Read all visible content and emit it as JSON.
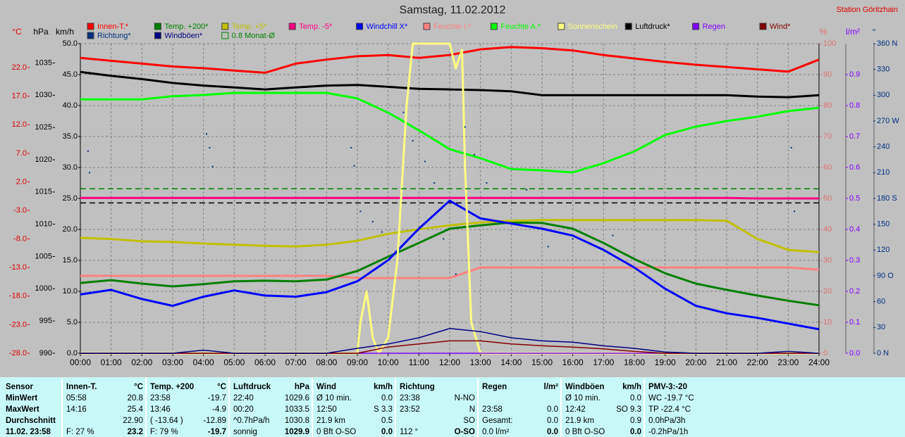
{
  "chart_data": {
    "type": "line",
    "title": "Samstag, 11.02.2012",
    "station": "Station Göritzhain",
    "xlim": [
      0,
      24
    ],
    "xticks": [
      {
        "value": 0,
        "label": "00:00"
      },
      {
        "value": 1,
        "label": "01:00"
      },
      {
        "value": 2,
        "label": "02:00"
      },
      {
        "value": 3,
        "label": "03:00"
      },
      {
        "value": 4,
        "label": "04:00"
      },
      {
        "value": 5,
        "label": "05:00"
      },
      {
        "value": 6,
        "label": "06:00"
      },
      {
        "value": 7,
        "label": "07:00"
      },
      {
        "value": 8,
        "label": "08:00"
      },
      {
        "value": 9,
        "label": "09:00"
      },
      {
        "value": 10,
        "label": "10:00"
      },
      {
        "value": 11,
        "label": "11:00"
      },
      {
        "value": 12,
        "label": "12:00"
      },
      {
        "value": 13,
        "label": "13:00"
      },
      {
        "value": 14,
        "label": "14:00"
      },
      {
        "value": 15,
        "label": "15:00"
      },
      {
        "value": 16,
        "label": "16:00"
      },
      {
        "value": 17,
        "label": "17:00"
      },
      {
        "value": 18,
        "label": "18:00"
      },
      {
        "value": 19,
        "label": "19:00"
      },
      {
        "value": 20,
        "label": "20:00"
      },
      {
        "value": 21,
        "label": "21:00"
      },
      {
        "value": 22,
        "label": "22:00"
      },
      {
        "value": 23,
        "label": "23:00"
      },
      {
        "value": 24,
        "label": "24:00"
      }
    ],
    "x": [
      0,
      1,
      2,
      3,
      4,
      5,
      6,
      7,
      8,
      9,
      10,
      11,
      12,
      13,
      14,
      15,
      16,
      17,
      18,
      19,
      20,
      21,
      22,
      23,
      24
    ],
    "grid": true,
    "grid_axis": "kmh",
    "yaxes": [
      {
        "id": "temp",
        "label": "°C",
        "color": "#e00000",
        "lim": [
          -28,
          26.2
        ],
        "ticks": [
          {
            "value": -28,
            "label": "-28.0"
          },
          {
            "value": -23,
            "label": "-23.0"
          },
          {
            "value": -18,
            "label": "-18.0"
          },
          {
            "value": -13,
            "label": "-13.0"
          },
          {
            "value": -8,
            "label": "-8.0"
          },
          {
            "value": -3,
            "label": "-3.0"
          },
          {
            "value": 2,
            "label": "2.0"
          },
          {
            "value": 7,
            "label": "7.0"
          },
          {
            "value": 12,
            "label": "12.0"
          },
          {
            "value": 17,
            "label": "17.0"
          },
          {
            "value": 22,
            "label": "22.0"
          }
        ]
      },
      {
        "id": "hpa",
        "label": "hPa",
        "color": "#000000",
        "lim": [
          990,
          1038
        ],
        "ticks": [
          990,
          995,
          1000,
          1005,
          1010,
          1015,
          1020,
          1025,
          1030,
          1035
        ]
      },
      {
        "id": "kmh",
        "label": "km/h",
        "color": "#000000",
        "lim": [
          0,
          50
        ],
        "ticks": [
          {
            "value": 0,
            "label": "0.0"
          },
          {
            "value": 5,
            "label": "5.0"
          },
          {
            "value": 10,
            "label": "10.0"
          },
          {
            "value": 15,
            "label": "15.0"
          },
          {
            "value": 20,
            "label": "20.0"
          },
          {
            "value": 25,
            "label": "25.0"
          },
          {
            "value": 30,
            "label": "30.0"
          },
          {
            "value": 35,
            "label": "35.0"
          },
          {
            "value": 40,
            "label": "40.0"
          },
          {
            "value": 45,
            "label": "45.0"
          },
          {
            "value": 50,
            "label": "50.0"
          }
        ]
      },
      {
        "id": "pct",
        "label": "%",
        "color": "#e07070",
        "lim": [
          0,
          100
        ],
        "ticks": [
          0,
          10,
          20,
          30,
          40,
          50,
          60,
          70,
          80,
          90,
          100
        ]
      },
      {
        "id": "rain",
        "label": "l/m²",
        "color": "#8000ff",
        "lim": [
          0,
          1
        ],
        "ticks": [
          {
            "value": 0,
            "label": "0.0"
          },
          0.1,
          0.2,
          0.3,
          0.4,
          0.5,
          0.6,
          0.7,
          0.8,
          0.9
        ]
      },
      {
        "id": "dir",
        "label": "°",
        "color": "#003080",
        "lim": [
          0,
          360
        ],
        "ticks": [
          {
            "value": 0,
            "label": "0 N"
          },
          30,
          60,
          {
            "value": 90,
            "label": "90 O"
          },
          120,
          150,
          {
            "value": 180,
            "label": "180 S"
          },
          210,
          240,
          {
            "value": 270,
            "label": "270 W"
          },
          300,
          330,
          {
            "value": 360,
            "label": "360 N"
          }
        ]
      }
    ],
    "series": [
      {
        "name": "Innen-T.*",
        "color": "#ff0000",
        "axis": "temp",
        "style": "line",
        "values": [
          23.7,
          23.2,
          22.7,
          22.2,
          21.9,
          21.5,
          21.1,
          22.7,
          23.4,
          24.0,
          24.2,
          23.7,
          24.2,
          25.2,
          25.6,
          25.4,
          25.0,
          24.2,
          23.6,
          23.0,
          22.5,
          22.1,
          21.7,
          21.3,
          23.4
        ]
      },
      {
        "name": "Temp. +200*",
        "color": "#008000",
        "axis": "temp",
        "style": "line",
        "values": [
          -15.7,
          -15.2,
          -15.8,
          -16.3,
          -15.9,
          -15.4,
          -15.3,
          -15.4,
          -15.1,
          -13.6,
          -11.1,
          -8.7,
          -6.2,
          -5.6,
          -5.1,
          -5.2,
          -6.2,
          -8.7,
          -11.5,
          -14.0,
          -15.8,
          -16.9,
          -17.9,
          -18.8,
          -19.6
        ]
      },
      {
        "name": "Temp. +5*",
        "color": "#c0c000",
        "axis": "temp",
        "style": "line",
        "values": [
          -7.8,
          -8.0,
          -8.4,
          -8.5,
          -8.8,
          -9.0,
          -9.2,
          -9.3,
          -9.0,
          -8.3,
          -7.1,
          -6.3,
          -5.6,
          -5.1,
          -4.8,
          -4.7,
          -4.7,
          -4.7,
          -4.7,
          -4.7,
          -4.7,
          -4.8,
          -8.0,
          -9.9,
          -10.3
        ]
      },
      {
        "name": "Temp. -5*",
        "color": "#ff0080",
        "axis": "temp",
        "style": "line",
        "values": [
          -0.8,
          -0.8,
          -0.8,
          -0.8,
          -0.8,
          -0.8,
          -0.8,
          -0.8,
          -0.8,
          -0.8,
          -0.8,
          -0.8,
          -0.8,
          -0.8,
          -0.8,
          -0.8,
          -0.8,
          -0.8,
          -0.8,
          -0.8,
          -0.8,
          -0.8,
          -0.9,
          -0.9,
          -0.9
        ]
      },
      {
        "name": "Windchill X*",
        "color": "#0000ff",
        "axis": "temp",
        "style": "line",
        "values": [
          -17.7,
          -16.9,
          -18.5,
          -19.7,
          -18.1,
          -17.0,
          -17.9,
          -18.1,
          -17.3,
          -15.4,
          -11.7,
          -6.2,
          -1.3,
          -4.4,
          -5.3,
          -6.2,
          -7.4,
          -9.9,
          -13.0,
          -16.7,
          -19.7,
          -21.0,
          -21.8,
          -22.8,
          -23.8
        ]
      },
      {
        "name": "Feuchte I.*",
        "color": "#ff8080",
        "axis": "pct",
        "style": "line",
        "values": [
          25.0,
          25.0,
          25.0,
          25.0,
          25.0,
          25.0,
          25.0,
          25.0,
          25.0,
          24.3,
          24.3,
          24.3,
          24.3,
          27.7,
          27.7,
          27.7,
          27.7,
          27.7,
          27.7,
          27.7,
          27.7,
          27.7,
          27.7,
          27.7,
          27.0
        ]
      },
      {
        "name": "Feuchte A.*",
        "color": "#00ff00",
        "axis": "pct",
        "style": "line",
        "values": [
          82.0,
          82.0,
          82.0,
          83.0,
          83.4,
          84.1,
          84.1,
          84.1,
          84.1,
          82.3,
          77.7,
          72.0,
          65.9,
          63.0,
          59.5,
          59.1,
          58.4,
          61.4,
          65.2,
          70.5,
          73.2,
          75.0,
          76.4,
          78.2,
          79.3
        ]
      },
      {
        "name": "Sonnenschein",
        "color": "#ffff80",
        "axis": "pct",
        "style": "line",
        "x": [
          0,
          9,
          9.1,
          9.3,
          9.5,
          9.7,
          10,
          10.3,
          10.6,
          10.8,
          11,
          11.5,
          12,
          12.2,
          12.4,
          12.5,
          12.7,
          13,
          24
        ],
        "values": [
          0,
          0,
          10,
          20,
          5,
          0,
          5,
          30,
          80,
          100,
          100,
          100,
          100,
          92,
          98,
          60,
          10,
          0,
          0
        ]
      },
      {
        "name": "Luftdruck*",
        "color": "#000000",
        "axis": "hpa",
        "style": "line",
        "values": [
          1033.6,
          1033.0,
          1032.5,
          1031.9,
          1031.5,
          1031.2,
          1030.9,
          1031.2,
          1031.5,
          1031.6,
          1031.3,
          1031.0,
          1030.9,
          1030.8,
          1030.6,
          1030.0,
          1030.0,
          1030.0,
          1030.0,
          1030.0,
          1030.0,
          1030.0,
          1029.8,
          1029.7,
          1030.0
        ]
      },
      {
        "name": "Regen",
        "color": "#8000ff",
        "axis": "rain",
        "style": "thin",
        "values": [
          0,
          0,
          0,
          0,
          0,
          0,
          0,
          0,
          0,
          0,
          0,
          0,
          0,
          0,
          0,
          0,
          0,
          0,
          0,
          0,
          0,
          0,
          0,
          0,
          0
        ]
      },
      {
        "name": "Wind*",
        "color": "#800000",
        "axis": "kmh",
        "style": "thin",
        "values": [
          0,
          0,
          0,
          0,
          0,
          0,
          0,
          0,
          0,
          0,
          1.0,
          1.5,
          2.0,
          2.0,
          1.5,
          1.2,
          1.0,
          0.7,
          0.3,
          0,
          0,
          0,
          0,
          0,
          0
        ]
      },
      {
        "name": "Richtung*",
        "color": "#003080",
        "axis": "dir",
        "style": "dots",
        "x": [
          0.25,
          0.3,
          4.1,
          4.2,
          4.3,
          8.8,
          8.9,
          9.1,
          9.5,
          9.8,
          10.5,
          10.8,
          11.2,
          11.5,
          11.8,
          12.2,
          12.5,
          12.8,
          13.2,
          14.5,
          15.2,
          16,
          17.3,
          23.1,
          23.2
        ],
        "values": [
          235,
          210,
          255,
          239,
          217,
          239,
          218,
          165,
          153,
          141,
          280,
          247,
          223,
          198,
          133,
          92,
          263,
          231,
          198,
          190,
          124,
          133,
          137,
          239,
          165
        ]
      },
      {
        "name": "Windböen*",
        "color": "#000080",
        "axis": "kmh",
        "style": "thin",
        "values": [
          0,
          0,
          0,
          0,
          0.5,
          0,
          0,
          0,
          0,
          0.8,
          1.5,
          2.5,
          4.0,
          3.5,
          2.5,
          2.0,
          1.8,
          1.2,
          0.8,
          0.2,
          0,
          0,
          0,
          0.3,
          0
        ]
      },
      {
        "name": "0.8 Monat-Ø",
        "color": "#008000",
        "axis": "temp",
        "style": "dashed",
        "x": [
          0,
          24
        ],
        "values": [
          0.8,
          0.8
        ]
      }
    ],
    "reference_lines": [
      {
        "axis": "hpa",
        "value": 1013.3,
        "color": "#000000"
      }
    ]
  },
  "stats": {
    "groups": [
      {
        "header": [
          "Sensor",
          null
        ],
        "rows": [
          [
            "MinWert",
            null
          ],
          [
            "MaxWert",
            null
          ],
          [
            "Durchschnitt",
            null
          ],
          [
            "11.02. 23:58",
            null
          ]
        ]
      },
      {
        "header": [
          "Innen-T.",
          "°C"
        ],
        "rows": [
          [
            "05:58",
            "20.8"
          ],
          [
            "14:16",
            "25.4"
          ],
          [
            null,
            "22.90"
          ],
          [
            "F: 27 %",
            "23.2"
          ]
        ]
      },
      {
        "header": [
          "Temp. +200",
          "°C"
        ],
        "rows": [
          [
            "23:58",
            "-19.7"
          ],
          [
            "13:46",
            "-4.9"
          ],
          [
            "( -13.64 )",
            "-12.89"
          ],
          [
            "F: 79 %",
            "-19.7"
          ]
        ]
      },
      {
        "header": [
          "Luftdruck",
          "hPa"
        ],
        "rows": [
          [
            "22:40",
            "1029.6"
          ],
          [
            "00:20",
            "1033.5"
          ],
          [
            "^0.7hPa/h",
            "1030.8"
          ],
          [
            "sonnig",
            "1029.9"
          ]
        ]
      },
      {
        "header": [
          "Wind",
          "km/h"
        ],
        "rows": [
          [
            "Ø 10 min.",
            "0.0"
          ],
          [
            "12:50",
            "S 3.3"
          ],
          [
            "21.9 km",
            "0.5"
          ],
          [
            "0 Bft O-SO",
            "0.0"
          ]
        ]
      },
      {
        "header": [
          "Richtung",
          null
        ],
        "rows": [
          [
            "23:38",
            "N-NO"
          ],
          [
            "23:52",
            "N"
          ],
          [
            null,
            "SO"
          ],
          [
            "112 °",
            "O-SO"
          ]
        ]
      },
      {
        "header": [
          "Regen",
          "l/m²"
        ],
        "rows": [
          [
            null,
            null
          ],
          [
            "23:58",
            "0.0"
          ],
          [
            "Gesamt:",
            "0.0"
          ],
          [
            "0.0 l/m²",
            "0.0"
          ]
        ]
      },
      {
        "header": [
          "Windböen",
          "km/h"
        ],
        "rows": [
          [
            "Ø 10 min.",
            "0.0"
          ],
          [
            "12:42",
            "SO 9.3"
          ],
          [
            "21.9 km",
            "0.9"
          ],
          [
            "0 Bft O-SO",
            "0.0"
          ]
        ]
      },
      {
        "header": [
          "PMV-3:-20",
          null
        ],
        "rows": [
          [
            "WC -19.7 °C",
            null
          ],
          [
            "TP -22.4 °C",
            null
          ],
          [
            "0.0hPa/3h",
            null
          ],
          [
            "-0.2hPa/1h",
            null
          ]
        ]
      }
    ]
  }
}
